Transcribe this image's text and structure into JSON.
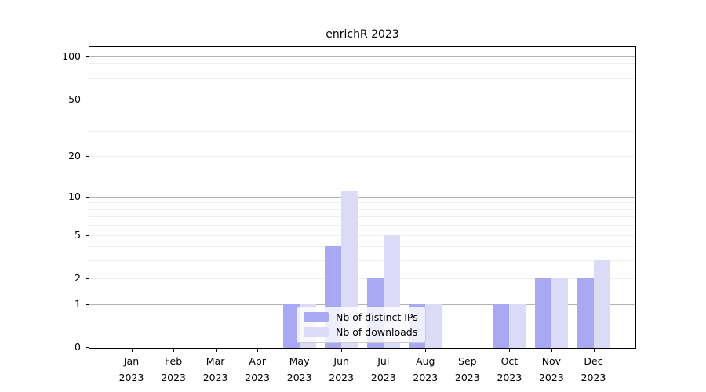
{
  "title": "enrichR 2023",
  "colors": {
    "distinct_ips": "#a9a9f3",
    "downloads": "#dbdbf8",
    "major_grid": "#b3b3b3",
    "minor_grid": "#ededed",
    "axis": "#000000",
    "legend_border": "#cccccc",
    "background": "#ffffff"
  },
  "chart_data": {
    "type": "bar",
    "title": "enrichR 2023",
    "categories": [
      "Jan 2023",
      "Feb 2023",
      "Mar 2023",
      "Apr 2023",
      "May 2023",
      "Jun 2023",
      "Jul 2023",
      "Aug 2023",
      "Sep 2023",
      "Oct 2023",
      "Nov 2023",
      "Dec 2023"
    ],
    "series": [
      {
        "name": "Nb of distinct IPs",
        "color": "#a9a9f3",
        "values": [
          0,
          0,
          0,
          0,
          1,
          4,
          2,
          1,
          0,
          1,
          2,
          2
        ]
      },
      {
        "name": "Nb of downloads",
        "color": "#dbdbf8",
        "values": [
          0,
          0,
          0,
          0,
          1,
          11,
          5,
          1,
          0,
          1,
          2,
          3
        ]
      }
    ],
    "xlabel": "",
    "ylabel": "",
    "yscale": "log1p",
    "ylim": [
      0,
      116
    ],
    "yticks": [
      0,
      1,
      2,
      5,
      10,
      20,
      50,
      100
    ],
    "major_gridlines": [
      1,
      10,
      100
    ],
    "minor_gridlines": [
      2,
      3,
      4,
      5,
      6,
      7,
      8,
      9,
      20,
      30,
      40,
      50,
      60,
      70,
      80,
      90
    ],
    "grid": true,
    "legend_position": "lower center"
  }
}
